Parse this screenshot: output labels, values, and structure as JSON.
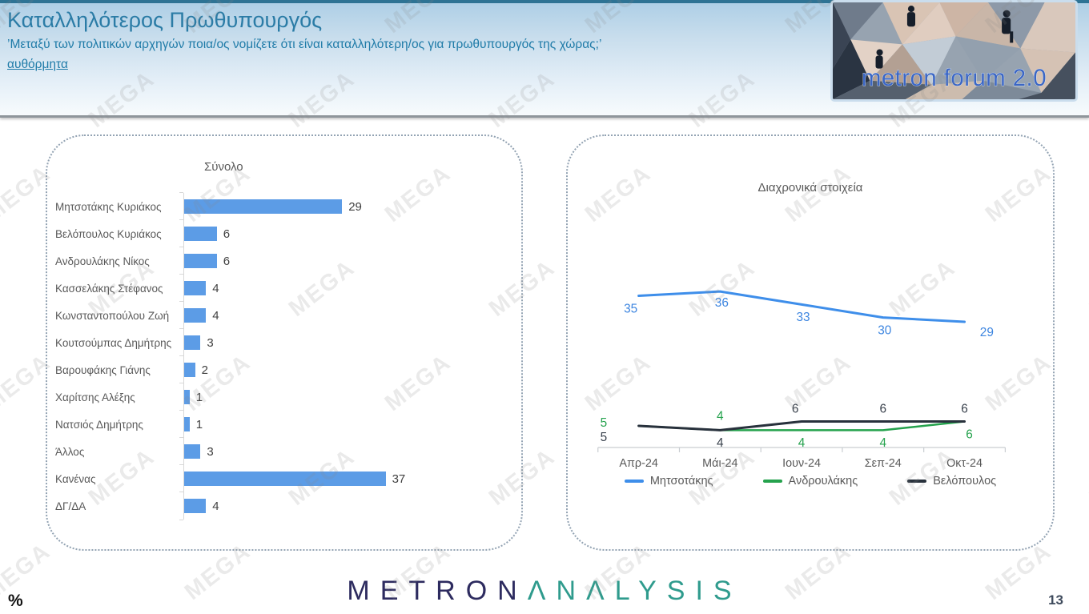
{
  "header": {
    "title": "Καταλληλότερος Πρωθυπουργός",
    "title_color": "#2B7CA6",
    "subtitle": "’Μεταξύ των πολιτικών αρχηγών ποια/ος νομίζετε ότι είναι καταλληλότερη/ος για πρωθυπουργός της χώρας;’",
    "note": "αυθόρμητα",
    "logo_text": "metron forum 2.0"
  },
  "watermark": {
    "text": "MEGA"
  },
  "chart_data": [
    {
      "type": "bar",
      "orientation": "horizontal",
      "title": "Σύνολο",
      "categories": [
        "Μητσοτάκης Κυριάκος",
        "Βελόπουλος Κυριάκος",
        "Ανδρουλάκης Νίκος",
        "Κασσελάκης Στέφανος",
        "Κωνσταντοπούλου Ζωή",
        "Κουτσούμπας Δημήτρης",
        "Βαρουφάκης Γιάνης",
        "Χαρίτσης Αλέξης",
        "Νατσιός Δημήτρης",
        "Άλλος",
        "Κανένας",
        "ΔΓ/ΔΑ"
      ],
      "values": [
        29,
        6,
        6,
        4,
        4,
        3,
        2,
        1,
        1,
        3,
        37,
        4
      ],
      "xlim": [
        0,
        40
      ],
      "grid": false,
      "data_labels": true,
      "bar_color": "#5C9CE6",
      "value_label_color": "#404040",
      "category_label_color": "#595959"
    },
    {
      "type": "line",
      "title": "Διαχρονικά στοιχεία",
      "x": [
        "Απρ-24",
        "Μάι-24",
        "Ιουν-24",
        "Σεπ-24",
        "Οκτ-24"
      ],
      "series": [
        {
          "name": "Μητσοτάκης",
          "color": "#3E8EEA",
          "label_color": "#3E86E0",
          "values": [
            35,
            36,
            33,
            30,
            29
          ]
        },
        {
          "name": "Ανδρουλάκης",
          "color": "#25A24D",
          "label_color": "#25A24D",
          "values": [
            5,
            4,
            4,
            4,
            6
          ]
        },
        {
          "name": "Βελόπουλος",
          "color": "#28313C",
          "label_color": "#3A424D",
          "values": [
            5,
            4,
            6,
            6,
            6
          ]
        }
      ],
      "ylim": [
        0,
        40
      ],
      "grid": false,
      "data_labels": true,
      "legend_position": "bottom",
      "axis_color": "#C9CDD1",
      "tick_label_color": "#595959"
    }
  ],
  "footer": {
    "unit_label": "%",
    "brand_primary": "METRON",
    "brand_secondary": "ΛNΛLYSIS",
    "brand_primary_color": "#2D2B5F",
    "brand_secondary_color": "#2F9B8D",
    "page_number": "13"
  }
}
